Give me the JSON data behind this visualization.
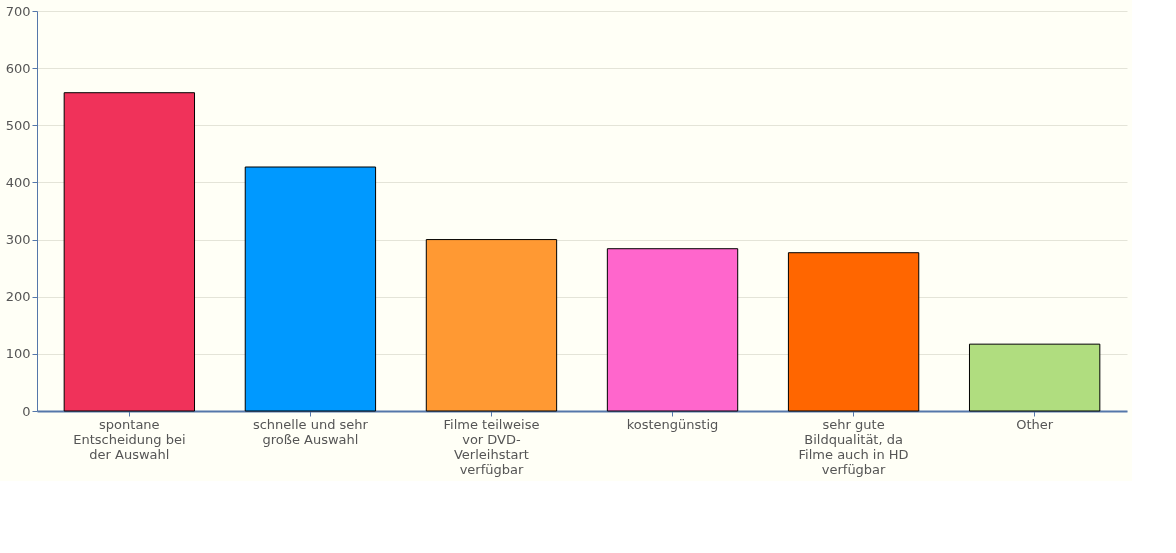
{
  "chart_data": {
    "type": "bar",
    "categories": [
      "spontane Entscheidung bei der Auswahl",
      "schnelle und sehr große Auswahl",
      "Filme teilweise vor DVD-Verleihstart verfügbar",
      "kostengünstig",
      "sehr gute Bildqualität, da Filme auch in HD verfügbar",
      "Other"
    ],
    "values": [
      557,
      427,
      300,
      284,
      277,
      117
    ],
    "colors": [
      "#f0325a",
      "#0099ff",
      "#ff9933",
      "#ff66cc",
      "#ff6600",
      "#b0dd7f"
    ],
    "ylim": [
      0,
      700
    ],
    "yticks": [
      0,
      100,
      200,
      300,
      400,
      500,
      600,
      700
    ],
    "grid": "y"
  }
}
